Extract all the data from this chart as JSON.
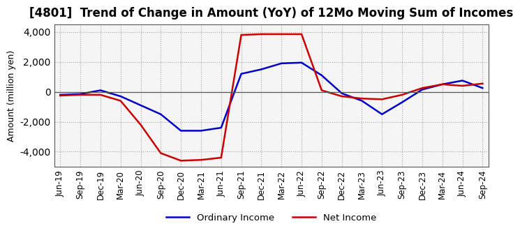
{
  "title": "[4801]  Trend of Change in Amount (YoY) of 12Mo Moving Sum of Incomes",
  "ylabel": "Amount (million yen)",
  "x_labels": [
    "Jun-19",
    "Sep-19",
    "Dec-19",
    "Mar-20",
    "Jun-20",
    "Sep-20",
    "Dec-20",
    "Mar-21",
    "Jun-21",
    "Sep-21",
    "Dec-21",
    "Mar-22",
    "Jun-22",
    "Sep-22",
    "Dec-22",
    "Mar-23",
    "Jun-23",
    "Sep-23",
    "Dec-23",
    "Mar-24",
    "Jun-24",
    "Sep-24"
  ],
  "ordinary_income": [
    -200,
    -150,
    100,
    -300,
    -900,
    -1500,
    -2600,
    -2600,
    -2400,
    1200,
    1500,
    1900,
    1950,
    1100,
    -100,
    -600,
    -1500,
    -700,
    150,
    500,
    750,
    250
  ],
  "net_income": [
    -250,
    -200,
    -200,
    -600,
    -2200,
    -4100,
    -4600,
    -4550,
    -4400,
    3800,
    3850,
    3850,
    3850,
    100,
    -300,
    -450,
    -500,
    -200,
    250,
    500,
    400,
    550
  ],
  "ordinary_color": "#0000cc",
  "net_color": "#cc0000",
  "background_color": "#f5f5f5",
  "grid_color": "#999999",
  "ylim": [
    -5000,
    4500
  ],
  "yticks": [
    -4000,
    -2000,
    0,
    2000,
    4000
  ],
  "line_width": 1.8,
  "title_fontsize": 12,
  "tick_fontsize": 8.5,
  "legend_labels": [
    "Ordinary Income",
    "Net Income"
  ]
}
